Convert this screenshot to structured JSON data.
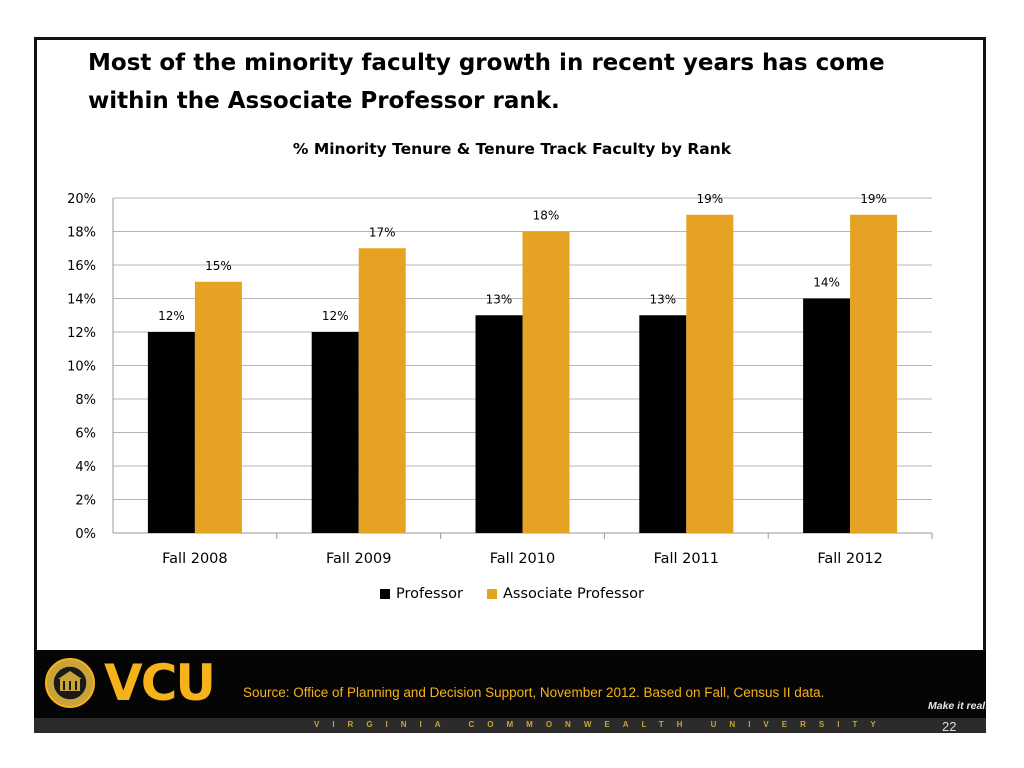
{
  "slide": {
    "headline": "Most of the minority faculty growth in recent years has come within the Associate Professor rank.",
    "slide_number": "22"
  },
  "chart_data": {
    "type": "bar",
    "title": "% Minority Tenure & Tenure Track Faculty by Rank",
    "categories": [
      "Fall 2008",
      "Fall 2009",
      "Fall 2010",
      "Fall 2011",
      "Fall 2012"
    ],
    "series": [
      {
        "name": "Professor",
        "color": "#000000",
        "values": [
          12,
          12,
          13,
          13,
          14
        ],
        "labels": [
          "12%",
          "12%",
          "13%",
          "13%",
          "14%"
        ]
      },
      {
        "name": "Associate Professor",
        "color": "#e6a323",
        "values": [
          15,
          17,
          18,
          19,
          19
        ],
        "labels": [
          "15%",
          "17%",
          "18%",
          "19%",
          "19%"
        ]
      }
    ],
    "y_ticks": [
      "0%",
      "2%",
      "4%",
      "6%",
      "8%",
      "10%",
      "12%",
      "14%",
      "16%",
      "18%",
      "20%"
    ],
    "ylim": [
      0,
      20
    ],
    "grid": true,
    "legend_position": "bottom"
  },
  "footer": {
    "logo_text": "VCU",
    "source": "Source: Office of Planning and Decision Support, November 2012. Based on Fall, Census II data.",
    "tagline": "Make it real.",
    "university": "VIRGINIA COMMONWEALTH UNIVERSITY",
    "seal_icon": "university-seal-icon",
    "accent_color": "#f6b21b"
  }
}
